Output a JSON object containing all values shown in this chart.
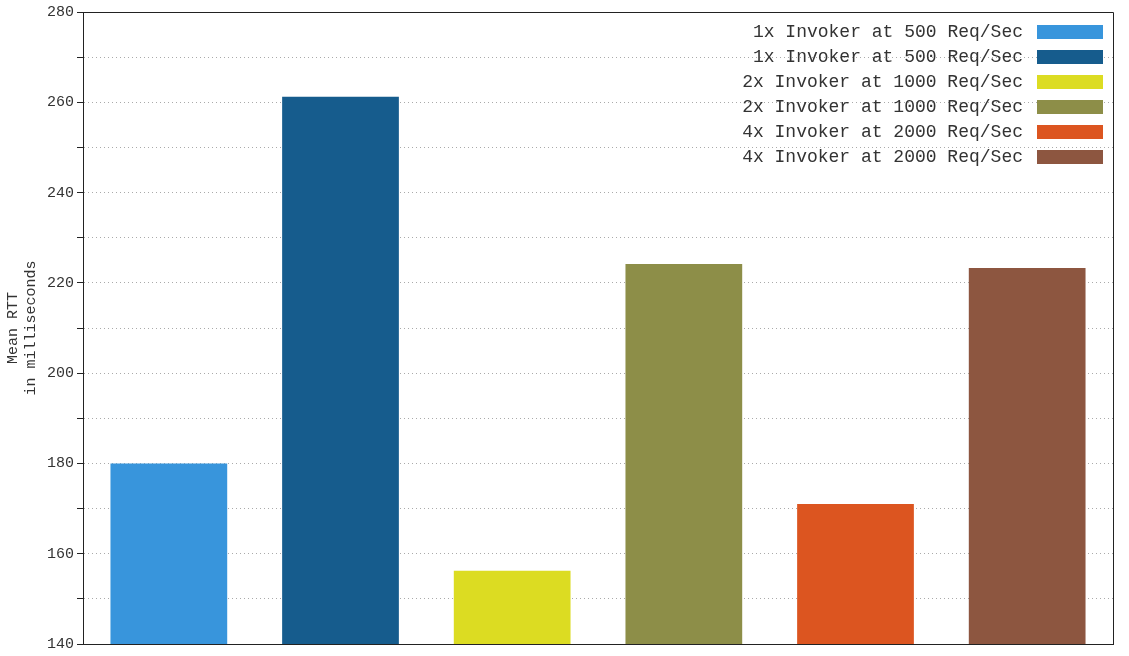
{
  "chart_data": {
    "type": "bar",
    "ylabel": "Mean RTT\nin milliseconds",
    "categories": [
      null,
      null,
      null,
      null,
      null,
      null
    ],
    "series": [
      {
        "name": "1x Invoker at 500 Req/Sec",
        "color": "#3895dc",
        "values": [
          180,
          null,
          null,
          null,
          null,
          null
        ]
      },
      {
        "name": "1x Invoker at 500 Req/Sec",
        "color": "#165c8d",
        "values": [
          null,
          261.2,
          null,
          null,
          null,
          null
        ]
      },
      {
        "name": "2x Invoker at 1000 Req/Sec",
        "color": "#dcdc22",
        "values": [
          null,
          null,
          156.2,
          null,
          null,
          null
        ]
      },
      {
        "name": "2x Invoker at 1000 Req/Sec",
        "color": "#8d8e48",
        "values": [
          null,
          null,
          null,
          224.2,
          null,
          null
        ]
      },
      {
        "name": "4x Invoker at 2000 Req/Sec",
        "color": "#dc5520",
        "values": [
          null,
          null,
          null,
          null,
          171,
          null
        ]
      },
      {
        "name": "4x Invoker at 2000 Req/Sec",
        "color": "#8d5640",
        "values": [
          null,
          null,
          null,
          null,
          null,
          223.3
        ]
      }
    ],
    "ylim": [
      140,
      280
    ],
    "yticks": [
      140,
      {
        "value": 150,
        "label": null
      },
      160,
      {
        "value": 170,
        "label": null
      },
      180,
      {
        "value": 190,
        "label": null
      },
      200,
      {
        "value": 210,
        "label": null
      },
      220,
      {
        "value": 230,
        "label": null
      },
      240,
      {
        "value": 250,
        "label": null
      },
      260,
      {
        "value": 270,
        "label": null
      },
      280
    ],
    "grid": "y",
    "legend": "top right",
    "tick_labels": "y"
  }
}
